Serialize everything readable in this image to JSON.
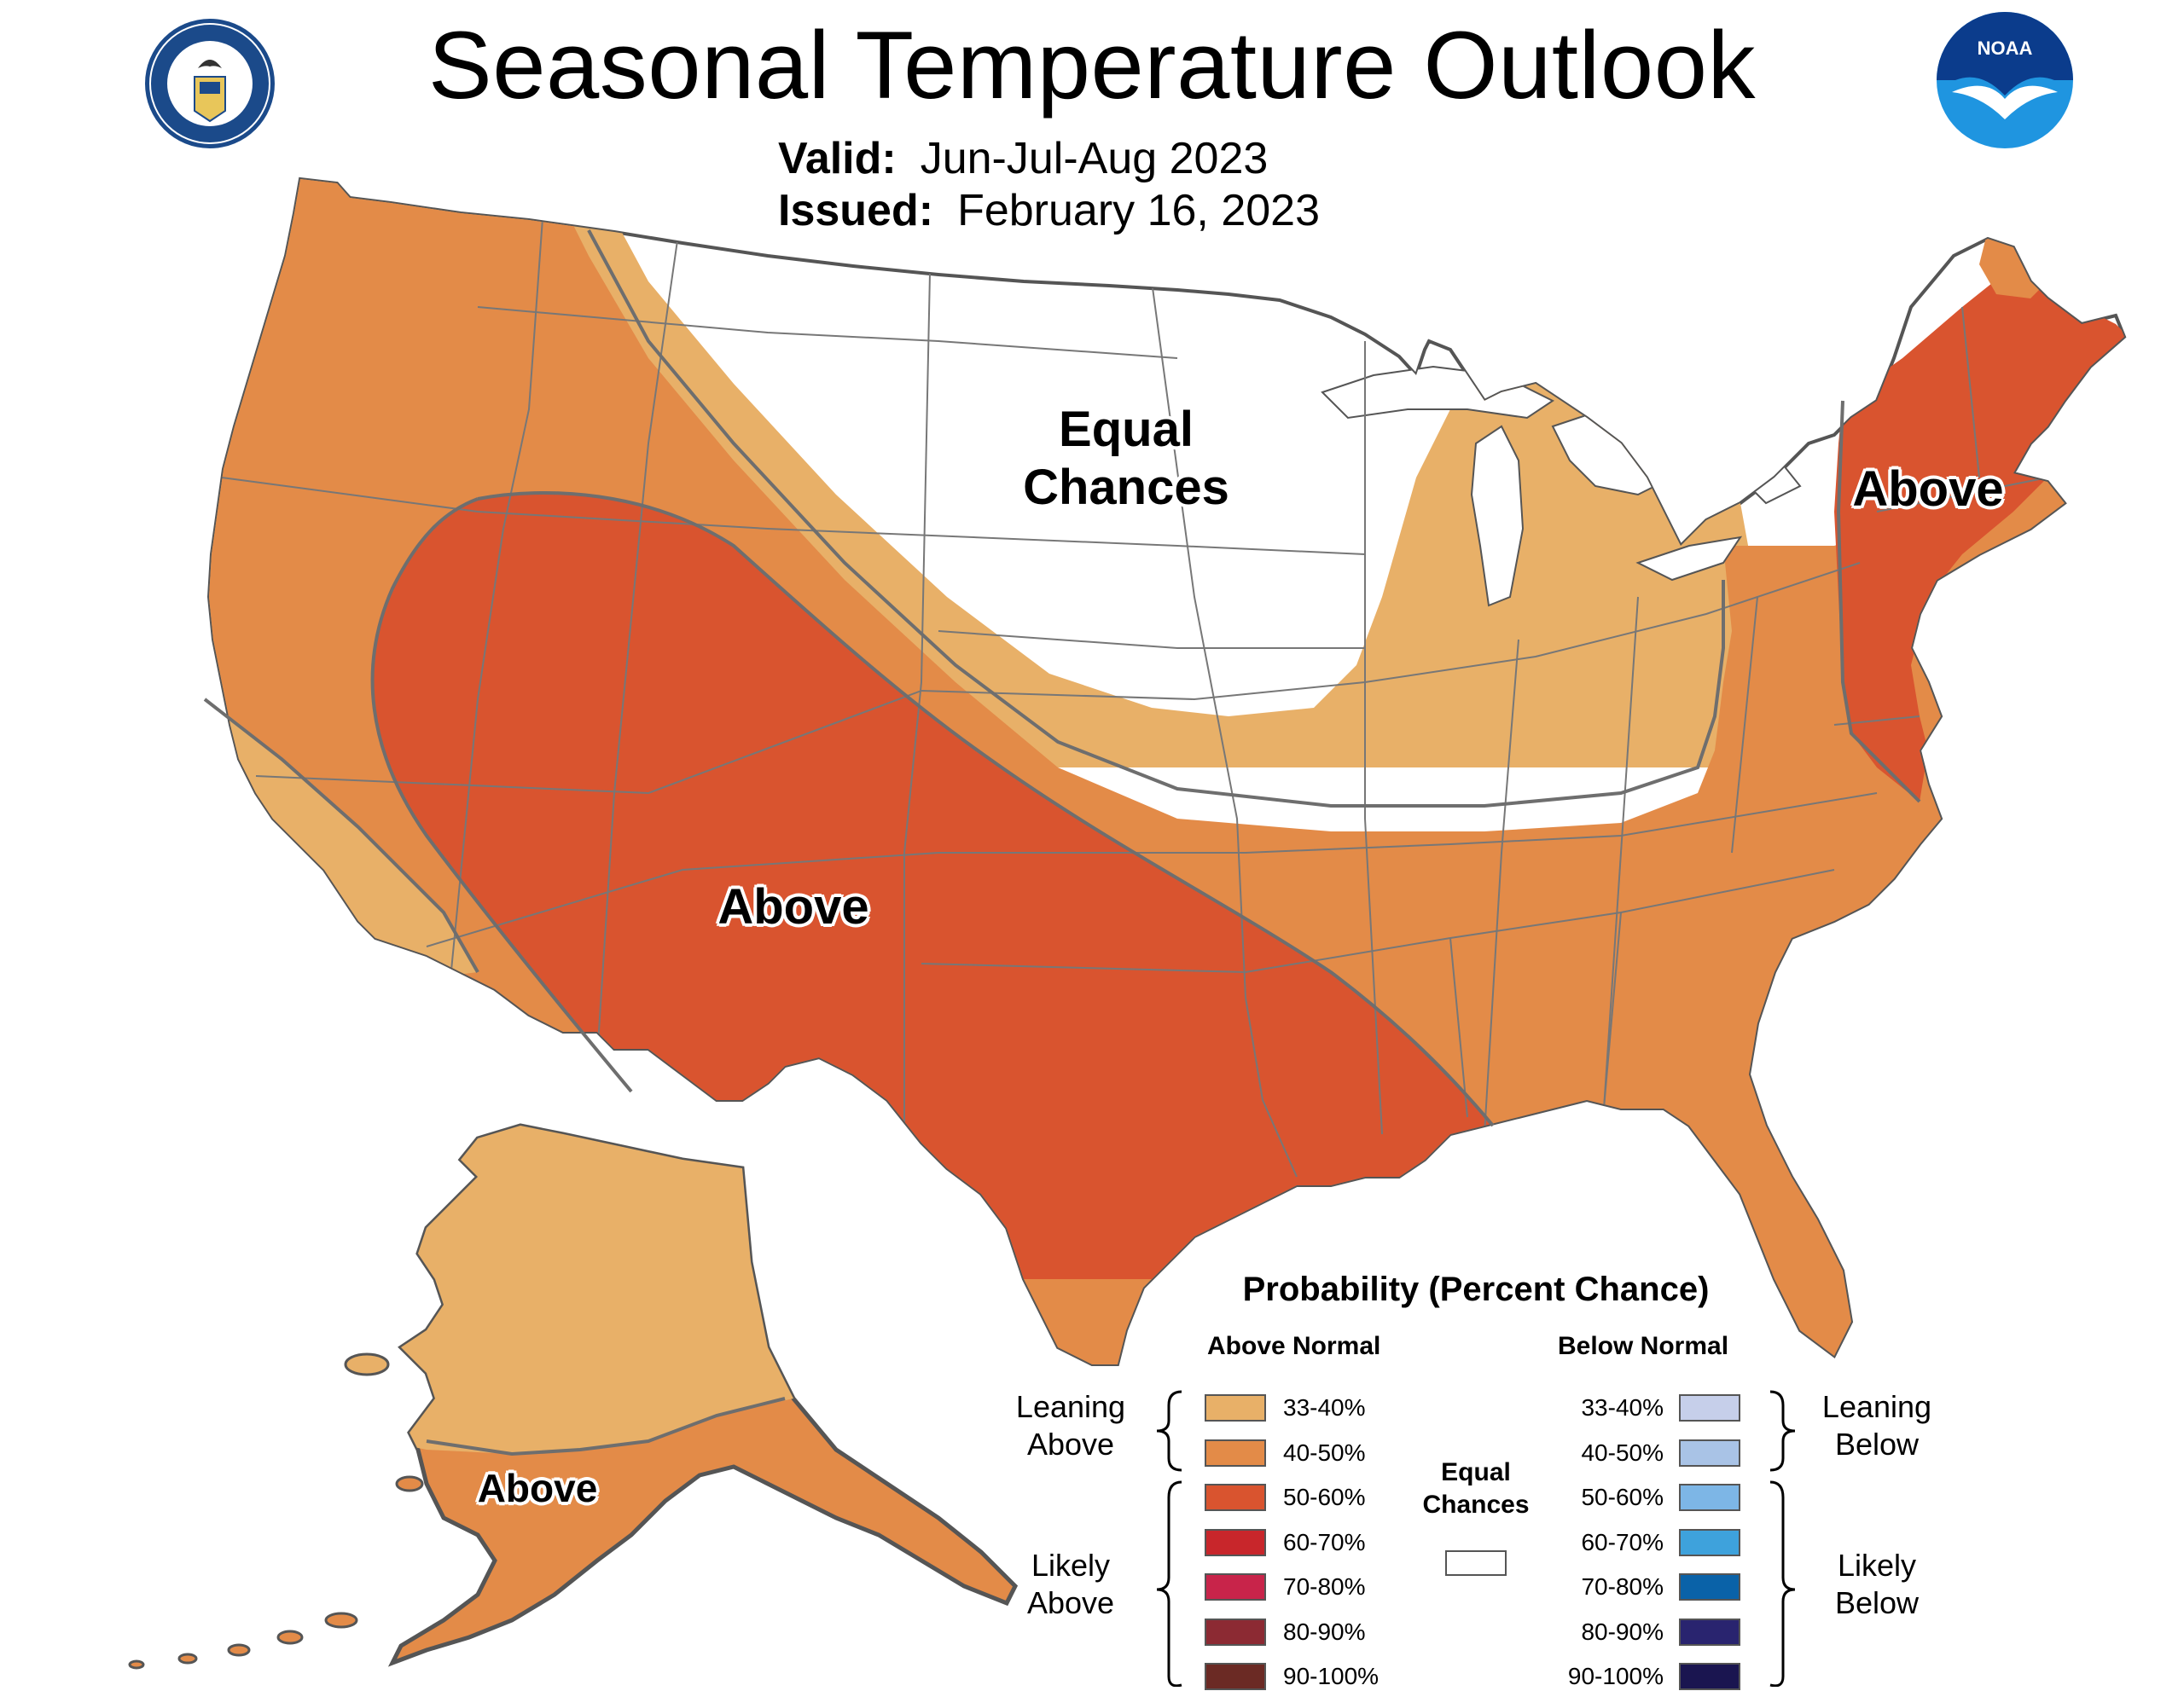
{
  "title": "Seasonal Temperature Outlook",
  "valid": {
    "label": "Valid:",
    "value": "Jun-Jul-Aug 2023"
  },
  "issued": {
    "label": "Issued:",
    "value": "February 16, 2023"
  },
  "logos": {
    "left": {
      "icon": "department-of-commerce-seal",
      "text": "DEPARTMENT OF COMMERCE · UNITED STATES OF AMERICA"
    },
    "right": {
      "icon": "noaa-logo",
      "text": "NOAA"
    }
  },
  "map_labels": {
    "equal_chances": "Equal\nChances",
    "above_west": "Above",
    "above_northeast": "Above",
    "above_alaska": "Above"
  },
  "legend": {
    "title": "Probability (Percent Chance)",
    "above_header": "Above Normal",
    "below_header": "Below Normal",
    "leaning_above": "Leaning\nAbove",
    "likely_above": "Likely\nAbove",
    "leaning_below": "Leaning\nBelow",
    "likely_below": "Likely\nBelow",
    "equal_chances": "Equal\nChances",
    "above": [
      {
        "label": "33-40%",
        "color": "#E8B068"
      },
      {
        "label": "40-50%",
        "color": "#E38B48"
      },
      {
        "label": "50-60%",
        "color": "#D9542F"
      },
      {
        "label": "60-70%",
        "color": "#C8262B"
      },
      {
        "label": "70-80%",
        "color": "#C8244A"
      },
      {
        "label": "80-90%",
        "color": "#8C2A33"
      },
      {
        "label": "90-100%",
        "color": "#6B2A24"
      }
    ],
    "below": [
      {
        "label": "33-40%",
        "color": "#C6CFEA"
      },
      {
        "label": "40-50%",
        "color": "#A9C3E6"
      },
      {
        "label": "50-60%",
        "color": "#7DB6E6"
      },
      {
        "label": "60-70%",
        "color": "#3EA2DC"
      },
      {
        "label": "70-80%",
        "color": "#0A62A8"
      },
      {
        "label": "80-90%",
        "color": "#29246F"
      },
      {
        "label": "90-100%",
        "color": "#1A1550"
      }
    ],
    "equal_color": "#FFFFFF"
  },
  "colors": {
    "c33": "#E8B068",
    "c40": "#E38B48",
    "c50": "#D9542F",
    "border": "#666666"
  }
}
